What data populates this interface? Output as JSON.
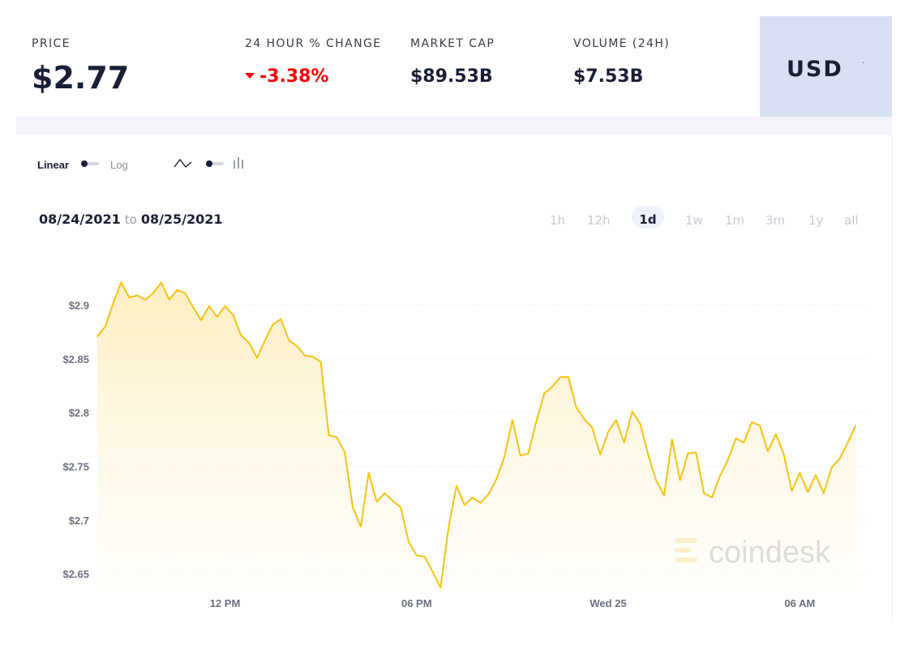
{
  "stats": {
    "price_label": "PRICE",
    "price_value": "$2.77",
    "change_label": "24 HOUR % CHANGE",
    "change_value": "-3.38%",
    "market_cap_label": "MARKET CAP",
    "market_cap_value": "$89.53B",
    "volume_label": "VOLUME (24H)",
    "volume_value": "$7.53B"
  },
  "currency": {
    "selected": "USD"
  },
  "controls": {
    "linear_label": "Linear",
    "log_label": "Log"
  },
  "date_range": {
    "from": "08/24/2021",
    "to_word": "to",
    "to": "08/25/2021"
  },
  "timeframes": [
    "1h",
    "12h",
    "1d",
    "1w",
    "1m",
    "3m",
    "1y",
    "all"
  ],
  "active_timeframe": "1d",
  "watermark": "coindesk",
  "colors": {
    "line": "#f5c214",
    "fill": "#fdf0c8",
    "negative": "#f70000",
    "currency_bg": "#d9e0f2"
  },
  "chart_data": {
    "type": "area",
    "ylim": [
      2.635,
      2.935
    ],
    "y_ticks": [
      2.65,
      2.7,
      2.75,
      2.8,
      2.85,
      2.9
    ],
    "y_tick_labels": [
      "$2.65",
      "$2.7",
      "$2.75",
      "$2.8",
      "$2.85",
      "$2.9"
    ],
    "x_ticks": [
      {
        "x": 12,
        "label": "12 PM"
      },
      {
        "x": 18,
        "label": "06 PM"
      },
      {
        "x": 24,
        "label": "Wed 25"
      },
      {
        "x": 30,
        "label": "06 AM"
      }
    ],
    "xlim": [
      8,
      32.1
    ],
    "x_unit": "hours from 08/24/2021 00:00",
    "series": [
      {
        "values": [
          [
            8.0,
            2.871
          ],
          [
            8.25,
            2.88
          ],
          [
            8.5,
            2.902
          ],
          [
            8.75,
            2.921
          ],
          [
            9.0,
            2.907
          ],
          [
            9.25,
            2.909
          ],
          [
            9.5,
            2.905
          ],
          [
            9.75,
            2.911
          ],
          [
            10.0,
            2.921
          ],
          [
            10.25,
            2.905
          ],
          [
            10.5,
            2.914
          ],
          [
            10.75,
            2.911
          ],
          [
            11.0,
            2.898
          ],
          [
            11.25,
            2.886
          ],
          [
            11.5,
            2.899
          ],
          [
            11.75,
            2.889
          ],
          [
            12.0,
            2.899
          ],
          [
            12.25,
            2.891
          ],
          [
            12.5,
            2.872
          ],
          [
            12.75,
            2.865
          ],
          [
            13.0,
            2.851
          ],
          [
            13.25,
            2.867
          ],
          [
            13.5,
            2.882
          ],
          [
            13.75,
            2.887
          ],
          [
            14.0,
            2.867
          ],
          [
            14.25,
            2.862
          ],
          [
            14.5,
            2.853
          ],
          [
            14.75,
            2.852
          ],
          [
            15.0,
            2.847
          ],
          [
            15.25,
            2.779
          ],
          [
            15.5,
            2.777
          ],
          [
            15.75,
            2.763
          ],
          [
            16.0,
            2.712
          ],
          [
            16.25,
            2.694
          ],
          [
            16.5,
            2.744
          ],
          [
            16.75,
            2.717
          ],
          [
            17.0,
            2.725
          ],
          [
            17.25,
            2.718
          ],
          [
            17.5,
            2.712
          ],
          [
            17.75,
            2.68
          ],
          [
            18.0,
            2.667
          ],
          [
            18.25,
            2.666
          ],
          [
            18.5,
            2.652
          ],
          [
            18.75,
            2.637
          ],
          [
            19.0,
            2.693
          ],
          [
            19.25,
            2.732
          ],
          [
            19.5,
            2.714
          ],
          [
            19.75,
            2.721
          ],
          [
            20.0,
            2.716
          ],
          [
            20.25,
            2.724
          ],
          [
            20.5,
            2.738
          ],
          [
            20.75,
            2.759
          ],
          [
            21.0,
            2.793
          ],
          [
            21.25,
            2.76
          ],
          [
            21.5,
            2.762
          ],
          [
            21.75,
            2.792
          ],
          [
            22.0,
            2.818
          ],
          [
            22.25,
            2.824
          ],
          [
            22.5,
            2.833
          ],
          [
            22.75,
            2.833
          ],
          [
            23.0,
            2.805
          ],
          [
            23.25,
            2.794
          ],
          [
            23.5,
            2.786
          ],
          [
            23.75,
            2.761
          ],
          [
            24.0,
            2.782
          ],
          [
            24.25,
            2.793
          ],
          [
            24.5,
            2.772
          ],
          [
            24.75,
            2.801
          ],
          [
            25.0,
            2.79
          ],
          [
            25.25,
            2.761
          ],
          [
            25.5,
            2.737
          ],
          [
            25.75,
            2.723
          ],
          [
            26.0,
            2.775
          ],
          [
            26.25,
            2.737
          ],
          [
            26.5,
            2.762
          ],
          [
            26.75,
            2.763
          ],
          [
            27.0,
            2.725
          ],
          [
            27.25,
            2.721
          ],
          [
            27.5,
            2.741
          ],
          [
            27.75,
            2.756
          ],
          [
            28.0,
            2.776
          ],
          [
            28.25,
            2.772
          ],
          [
            28.5,
            2.791
          ],
          [
            28.75,
            2.788
          ],
          [
            29.0,
            2.764
          ],
          [
            29.25,
            2.78
          ],
          [
            29.5,
            2.761
          ],
          [
            29.75,
            2.727
          ],
          [
            30.0,
            2.744
          ],
          [
            30.25,
            2.726
          ],
          [
            30.5,
            2.742
          ],
          [
            30.75,
            2.725
          ],
          [
            31.0,
            2.749
          ],
          [
            31.25,
            2.757
          ],
          [
            31.5,
            2.772
          ],
          [
            31.75,
            2.788
          ]
        ]
      }
    ],
    "grid": true,
    "legend": "none"
  }
}
